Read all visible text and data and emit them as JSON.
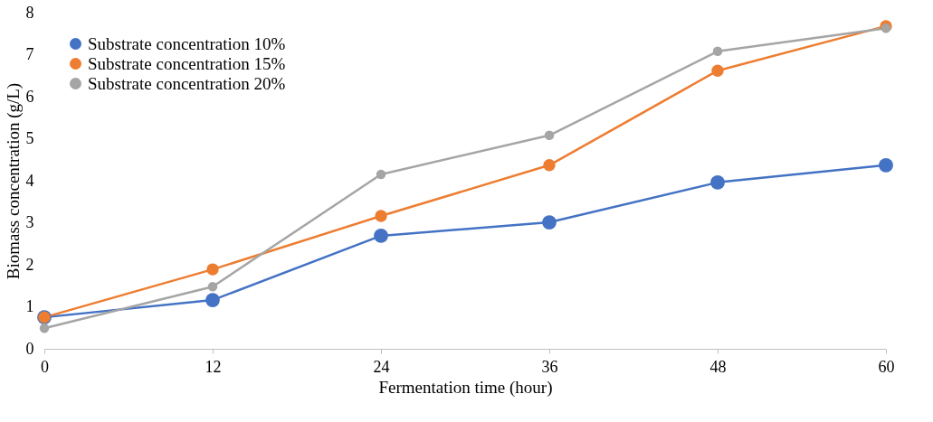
{
  "chart_data": {
    "type": "line",
    "xlabel": "Fermentation time (hour)",
    "ylabel": "Biomass concentration (g/L)",
    "x": [
      0,
      12,
      24,
      36,
      48,
      60
    ],
    "series": [
      {
        "name": "Substrate concentration 10%",
        "color": "#4472c4",
        "values": [
          0.75,
          1.16,
          2.69,
          3.01,
          3.96,
          4.37
        ]
      },
      {
        "name": "Substrate concentration 15%",
        "color": "#ed7d31",
        "values": [
          0.75,
          1.89,
          3.16,
          4.37,
          6.62,
          7.68
        ]
      },
      {
        "name": "Substrate concentration 20%",
        "color": "#a5a5a5",
        "values": [
          0.49,
          1.48,
          4.15,
          5.08,
          7.08,
          7.63
        ]
      }
    ],
    "xlim": [
      0,
      60
    ],
    "xticks": [
      0,
      12,
      24,
      36,
      48,
      60
    ],
    "ylim": [
      0,
      8
    ],
    "yticks": [
      0,
      1,
      2,
      3,
      4,
      5,
      6,
      7,
      8
    ],
    "grid": false,
    "legend": "top left",
    "marker": "circle",
    "line_style": "solid"
  }
}
